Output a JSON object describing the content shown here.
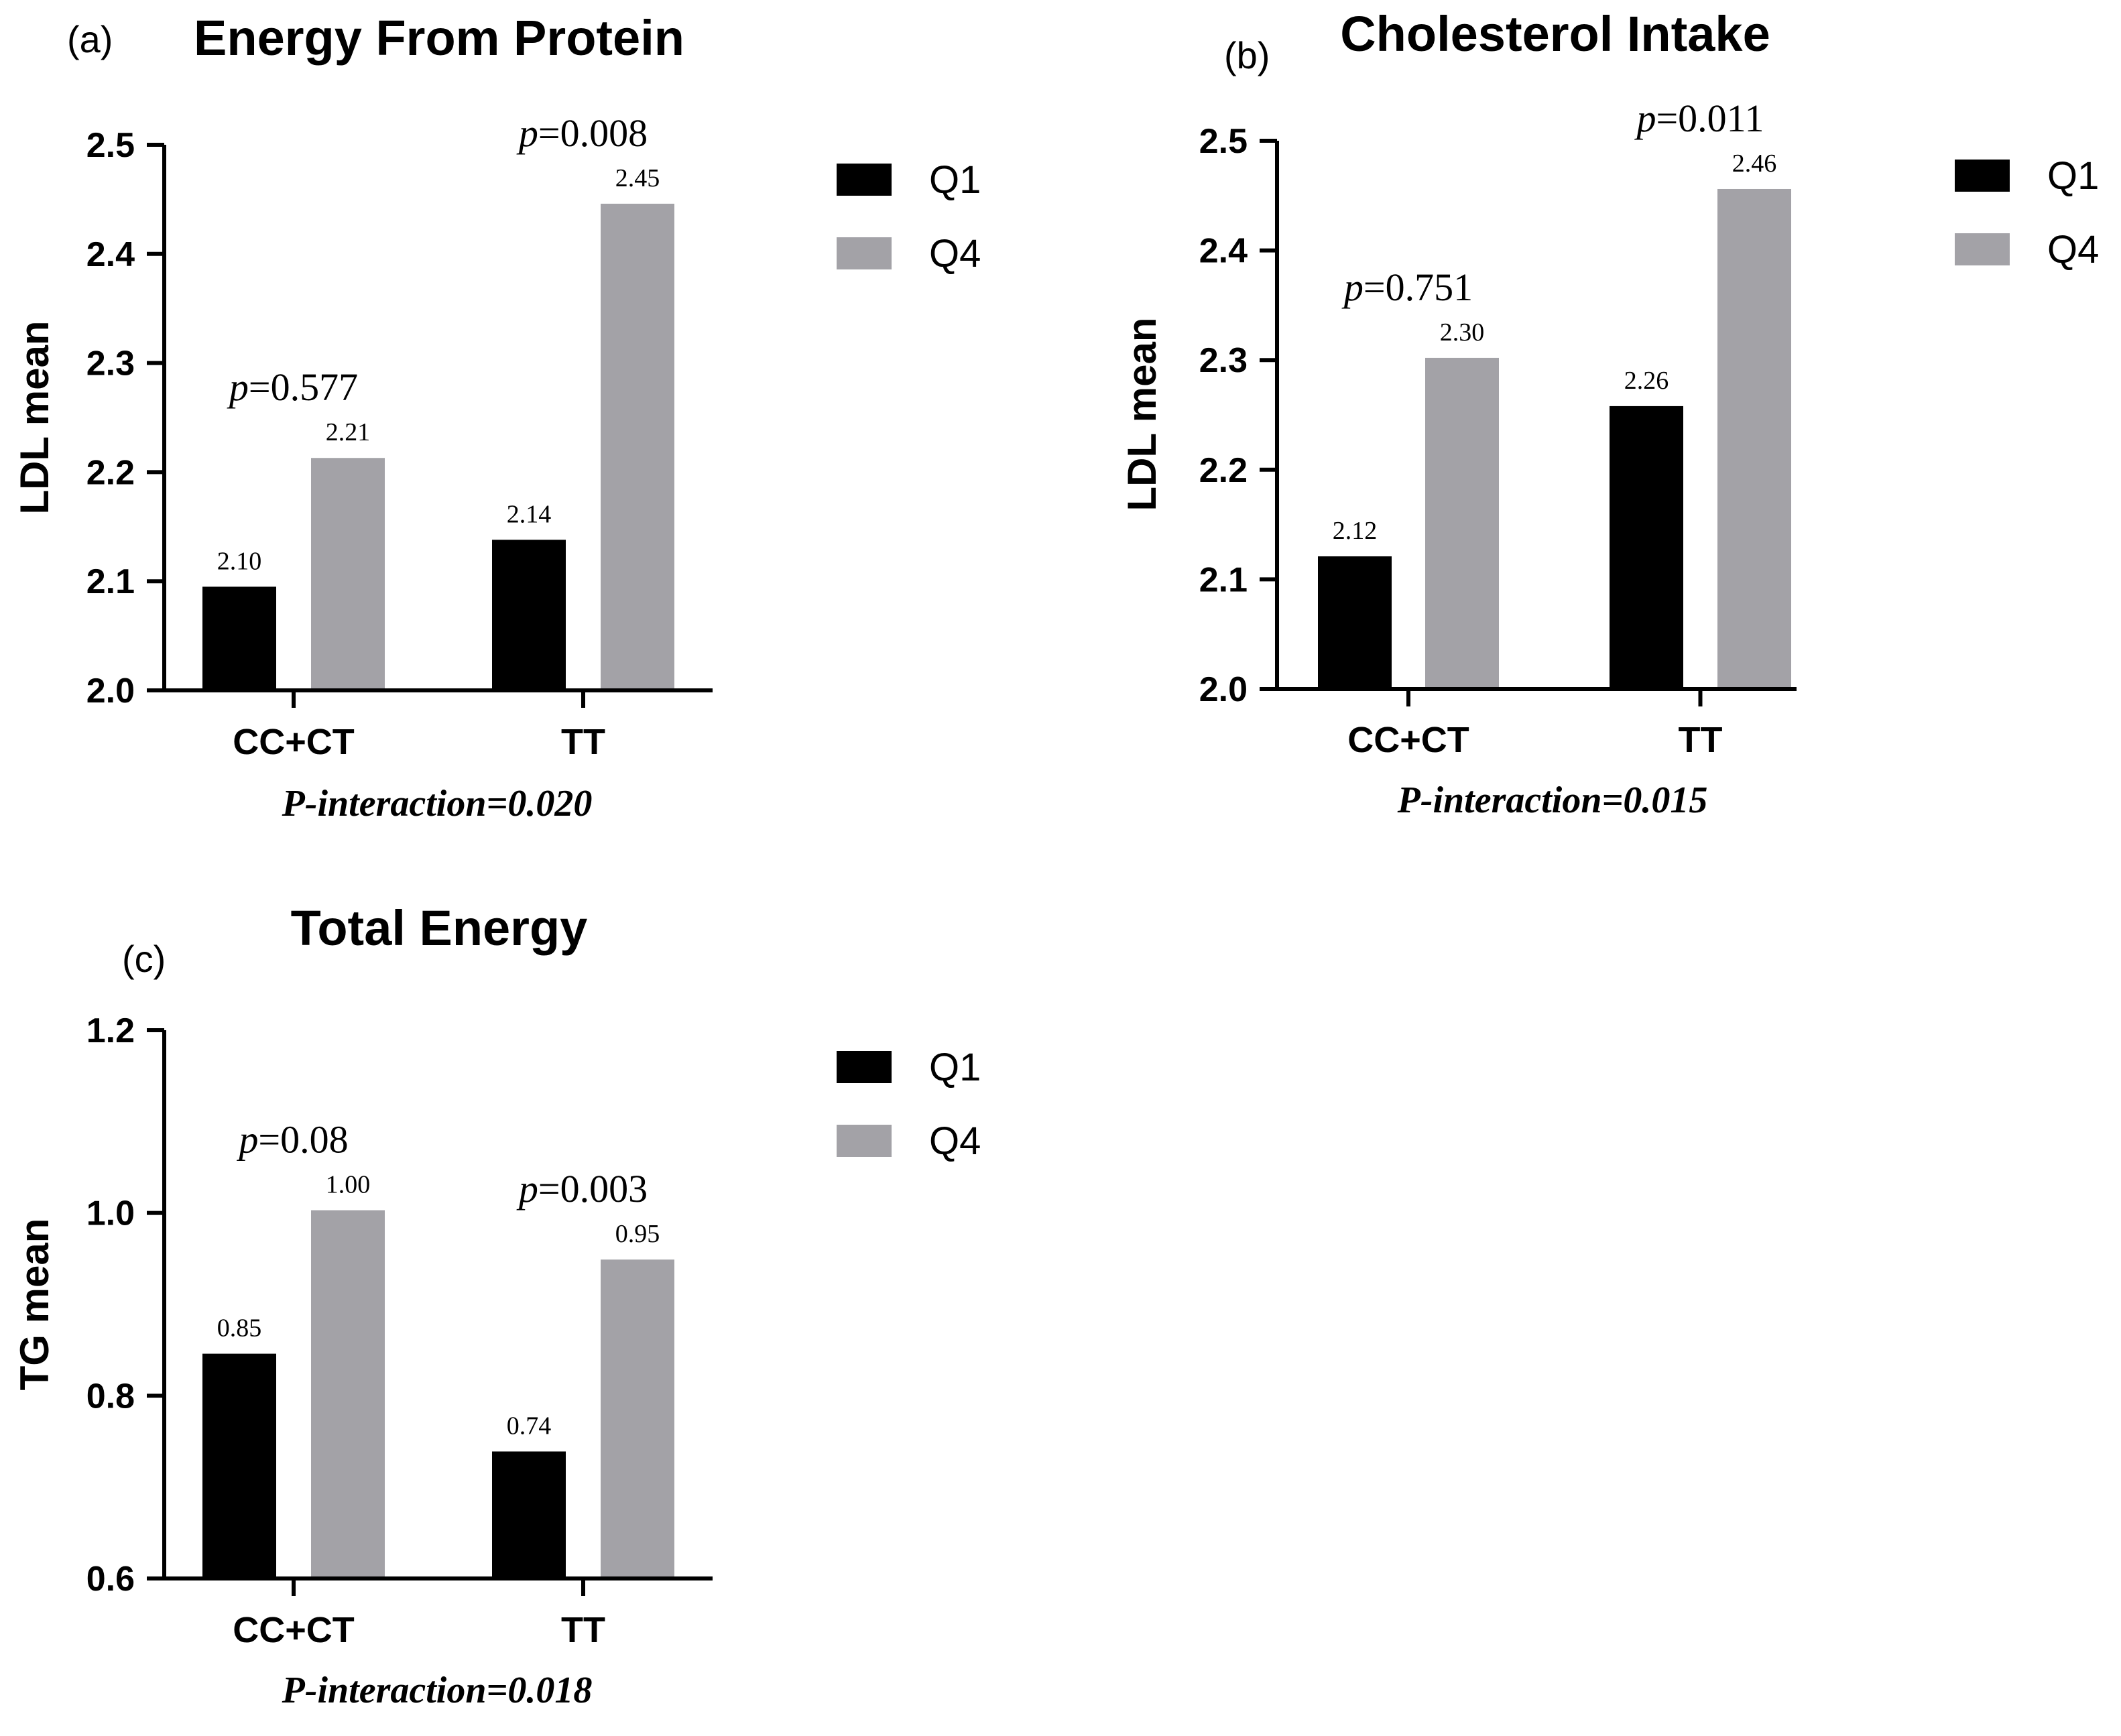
{
  "colors": {
    "q1": "#000000",
    "q4": "#a3a2a7",
    "axis": "#000000"
  },
  "chart_data": [
    {
      "type": "bar",
      "panel": "(a)",
      "title": "Energy From Protein",
      "ylabel": "LDL mean",
      "xlabel": "",
      "ylim": [
        2.0,
        2.5
      ],
      "yticks": [
        "2.0",
        "2.1",
        "2.2",
        "2.3",
        "2.4",
        "2.5"
      ],
      "categories": [
        "CC+CT",
        "TT"
      ],
      "series": [
        {
          "name": "Q1",
          "values": [
            2.095,
            2.138
          ],
          "labels": [
            "2.10",
            "2.14"
          ]
        },
        {
          "name": "Q4",
          "values": [
            2.213,
            2.446
          ],
          "labels": [
            "2.21",
            "2.45"
          ]
        }
      ],
      "pvalues": [
        {
          "italic": "p",
          "rest": "=0.577"
        },
        {
          "italic": "p",
          "rest": "=0.008"
        }
      ],
      "interaction": "P-interaction=0.020",
      "legend": [
        "Q1",
        "Q4"
      ]
    },
    {
      "type": "bar",
      "panel": "(b)",
      "title": "Cholesterol Intake",
      "ylabel": "LDL mean",
      "xlabel": "",
      "ylim": [
        2.0,
        2.5
      ],
      "yticks": [
        "2.0",
        "2.1",
        "2.2",
        "2.3",
        "2.4",
        "2.5"
      ],
      "categories": [
        "CC+CT",
        "TT"
      ],
      "series": [
        {
          "name": "Q1",
          "values": [
            2.121,
            2.258
          ],
          "labels": [
            "2.12",
            "2.26"
          ]
        },
        {
          "name": "Q4",
          "values": [
            2.302,
            2.456
          ],
          "labels": [
            "2.30",
            "2.46"
          ]
        }
      ],
      "pvalues": [
        {
          "italic": "p",
          "rest": "=0.751"
        },
        {
          "italic": "p",
          "rest": "=0.011"
        }
      ],
      "interaction": "P-interaction=0.015",
      "legend": [
        "Q1",
        "Q4"
      ]
    },
    {
      "type": "bar",
      "panel": "(c)",
      "title": "Total Energy",
      "ylabel": "TG mean",
      "xlabel": "",
      "ylim": [
        0.6,
        1.2
      ],
      "yticks": [
        "0.6",
        "0.8",
        "1.0",
        "1.2"
      ],
      "categories": [
        "CC+CT",
        "TT"
      ],
      "series": [
        {
          "name": "Q1",
          "values": [
            0.846,
            0.739
          ],
          "labels": [
            "0.85",
            "0.74"
          ]
        },
        {
          "name": "Q4",
          "values": [
            1.003,
            0.949
          ],
          "labels": [
            "1.00",
            "0.95"
          ]
        }
      ],
      "pvalues": [
        {
          "italic": "p",
          "rest": "=0.08"
        },
        {
          "italic": "p",
          "rest": "=0.003"
        }
      ],
      "interaction": "P-interaction=0.018",
      "legend": [
        "Q1",
        "Q4"
      ]
    }
  ]
}
